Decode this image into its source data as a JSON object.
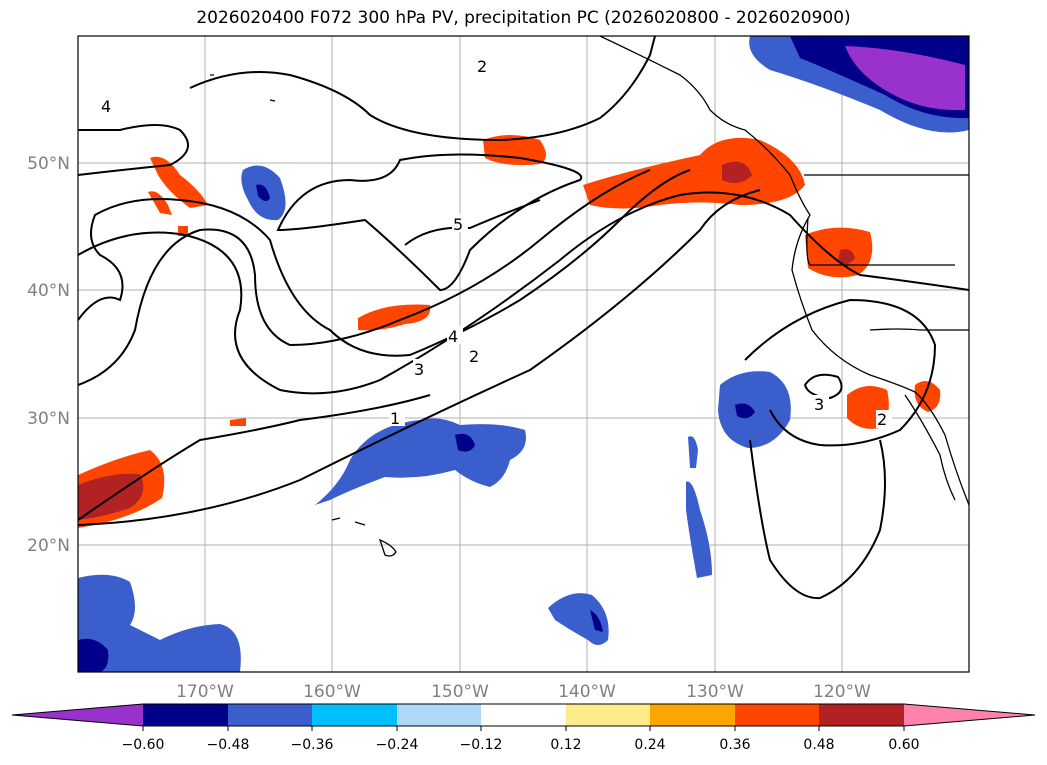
{
  "title": "2026020400 F072 300 hPa PV, precipitation PC (2026020800 - 2026020900)",
  "map": {
    "lon_labels": [
      "170°W",
      "160°W",
      "150°W",
      "140°W",
      "130°W",
      "120°W"
    ],
    "lat_labels": [
      "50°N",
      "40°N",
      "30°N",
      "20°N"
    ],
    "contour_labels": [
      "4",
      "2",
      "5",
      "4",
      "2",
      "3",
      "1",
      "3",
      "2"
    ]
  },
  "colorbar": {
    "ticks": [
      "−0.60",
      "−0.48",
      "−0.36",
      "−0.24",
      "−0.12",
      "0.12",
      "0.24",
      "0.36",
      "0.48",
      "0.60"
    ],
    "colors": [
      "#9932cc",
      "#00008b",
      "#3a5fcd",
      "#00bfff",
      "#add8f6",
      "#ffffff",
      "#ffeb8c",
      "#ffa500",
      "#ff4500",
      "#b22222",
      "#ff82ab"
    ]
  }
}
